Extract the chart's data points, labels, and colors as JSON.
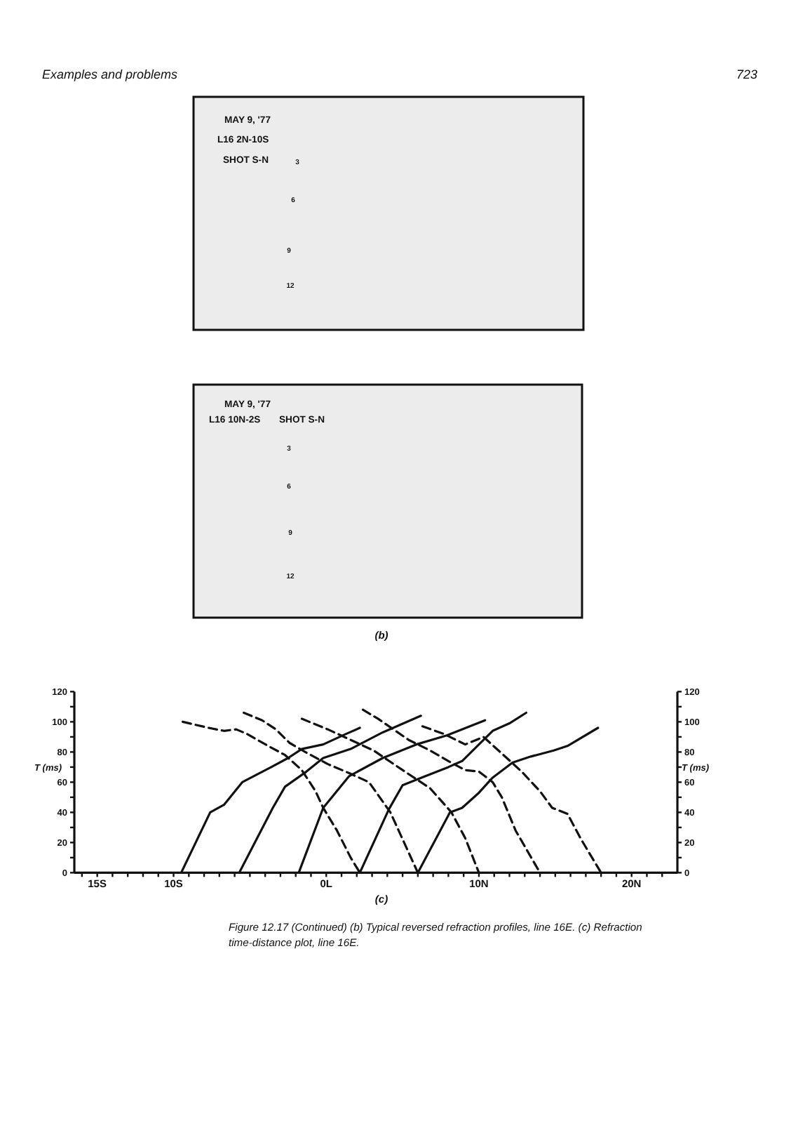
{
  "chart_data": {
    "type": "line",
    "ylabel": "T (ms)",
    "y2label": "T (ms)",
    "xlim": [
      -16.5,
      23
    ],
    "xticks": [
      {
        "value": -16,
        "label": null
      },
      {
        "value": -15,
        "label": "15S"
      },
      {
        "value": -14,
        "label": null
      },
      {
        "value": -13,
        "label": null
      },
      {
        "value": -12,
        "label": null
      },
      {
        "value": -11,
        "label": null
      },
      {
        "value": -10,
        "label": "10S"
      },
      {
        "value": -9,
        "label": null
      },
      {
        "value": -8,
        "label": null
      },
      {
        "value": -7,
        "label": null
      },
      {
        "value": -6,
        "label": null
      },
      {
        "value": -5,
        "label": null
      },
      {
        "value": -4,
        "label": null
      },
      {
        "value": -3,
        "label": null
      },
      {
        "value": -2,
        "label": null
      },
      {
        "value": -1,
        "label": null
      },
      {
        "value": 0,
        "label": "0L"
      },
      {
        "value": 1,
        "label": null
      },
      {
        "value": 2,
        "label": null
      },
      {
        "value": 3,
        "label": null
      },
      {
        "value": 4,
        "label": null
      },
      {
        "value": 5,
        "label": null
      },
      {
        "value": 6,
        "label": null
      },
      {
        "value": 7,
        "label": null
      },
      {
        "value": 8,
        "label": null
      },
      {
        "value": 9,
        "label": null
      },
      {
        "value": 10,
        "label": "10N"
      },
      {
        "value": 11,
        "label": null
      },
      {
        "value": 12,
        "label": null
      },
      {
        "value": 13,
        "label": null
      },
      {
        "value": 14,
        "label": null
      },
      {
        "value": 15,
        "label": null
      },
      {
        "value": 16,
        "label": null
      },
      {
        "value": 17,
        "label": null
      },
      {
        "value": 18,
        "label": null
      },
      {
        "value": 19,
        "label": null
      },
      {
        "value": 20,
        "label": "20N"
      },
      {
        "value": 21,
        "label": null
      },
      {
        "value": 22,
        "label": null
      }
    ],
    "ylim": [
      0,
      120
    ],
    "yticks": [
      0,
      {
        "value": 10,
        "label": null
      },
      20,
      {
        "value": 30,
        "label": null
      },
      40,
      {
        "value": 50,
        "label": null
      },
      60,
      {
        "value": 70,
        "label": null
      },
      80,
      {
        "value": 90,
        "label": null
      },
      100,
      {
        "value": 110,
        "label": null
      },
      120
    ],
    "y2lim": [
      0,
      120
    ],
    "y2ticks": [
      0,
      {
        "value": 10,
        "label": null
      },
      20,
      {
        "value": 30,
        "label": null
      },
      40,
      {
        "value": 50,
        "label": null
      },
      60,
      {
        "value": 70,
        "label": null
      },
      80,
      {
        "value": 90,
        "label": null
      },
      100,
      {
        "value": 110,
        "label": null
      },
      120
    ],
    "series": [
      {
        "color": "#111111",
        "line_style": "solid",
        "x": [
          -9.5,
          -7.6,
          -6.7,
          -5.5,
          -3.6,
          -2.5,
          -1.6,
          -0.2,
          1.3,
          2.2
        ],
        "values": [
          0,
          40,
          45,
          60,
          70,
          76,
          82,
          85,
          92,
          96
        ]
      },
      {
        "color": "#111111",
        "line_style": "solid",
        "x": [
          -5.7,
          -3.5,
          -2.7,
          -1.3,
          -0.2,
          1.6,
          3.7,
          6.2
        ],
        "values": [
          0,
          43,
          57,
          67,
          76,
          82,
          93,
          104
        ]
      },
      {
        "color": "#111111",
        "line_style": "solid",
        "x": [
          -1.8,
          -0.2,
          1.5,
          3.7,
          5.9,
          7.9,
          10.4
        ],
        "values": [
          0,
          43,
          64,
          76,
          85,
          91,
          101
        ]
      },
      {
        "color": "#111111",
        "line_style": "solid",
        "x": [
          2.2,
          4.1,
          5.0,
          6.5,
          8.0,
          8.9,
          10.0,
          10.9,
          12.0,
          13.1
        ],
        "values": [
          0,
          42,
          58,
          64,
          70,
          74,
          85,
          94,
          99,
          106
        ]
      },
      {
        "color": "#111111",
        "line_style": "solid",
        "x": [
          6.0,
          8.1,
          8.9,
          10.0,
          10.9,
          12.2,
          13.4,
          14.9,
          15.8,
          17.8
        ],
        "values": [
          0,
          40,
          43,
          53,
          63,
          73,
          77,
          81,
          84,
          96
        ]
      },
      {
        "color": "#111111",
        "line_style": "dashed",
        "x": [
          -9.4,
          -7.7,
          -6.7,
          -5.9,
          -5.2,
          -3.8,
          -2.7,
          -1.6,
          -0.7,
          -0.2,
          0.7,
          1.6,
          2.2
        ],
        "values": [
          100,
          96,
          94,
          95,
          92,
          84,
          78,
          68,
          54,
          43,
          28,
          10,
          0
        ]
      },
      {
        "color": "#111111",
        "line_style": "dashed",
        "x": [
          -5.4,
          -4.2,
          -3.3,
          -2.4,
          -1.2,
          0.1,
          1.5,
          2.8,
          4.2,
          6.0
        ],
        "values": [
          106,
          101,
          95,
          86,
          79,
          72,
          66,
          60,
          40,
          0
        ]
      },
      {
        "color": "#111111",
        "line_style": "dashed",
        "x": [
          -1.6,
          0.1,
          1.6,
          3.1,
          5.0,
          6.8,
          8.2,
          9.1,
          10.0
        ],
        "values": [
          102,
          95,
          88,
          81,
          68,
          56,
          40,
          23,
          0
        ]
      },
      {
        "color": "#111111",
        "line_style": "dashed",
        "x": [
          2.4,
          3.4,
          5.4,
          6.8,
          8.0,
          9.1,
          10.0,
          10.9,
          11.5,
          12.4,
          14.0
        ],
        "values": [
          108,
          102,
          88,
          81,
          74,
          68,
          67,
          60,
          50,
          28,
          0
        ]
      },
      {
        "color": "#111111",
        "line_style": "dashed",
        "x": [
          6.3,
          7.7,
          9.1,
          10.3,
          11.5,
          12.8,
          14.0,
          14.8,
          15.8,
          16.7,
          18.0
        ],
        "values": [
          97,
          92,
          85,
          90,
          79,
          67,
          54,
          43,
          39,
          22,
          0
        ]
      }
    ],
    "annotations": [
      "Examples and problems",
      "723",
      "MAY 9, '77",
      "L16 2N-10S",
      "SHOT S-N",
      "3",
      "6",
      "9",
      "12",
      "MAY 9, '77",
      "L16 10N-2S",
      "SHOT S-N",
      "3",
      "6",
      "9",
      "12",
      "(b)",
      "(c)",
      "Figure 12.17 (Continued) (b) Typical reversed refraction profiles, line 16E. (c) Refraction time-distance plot, line 16E."
    ]
  }
}
